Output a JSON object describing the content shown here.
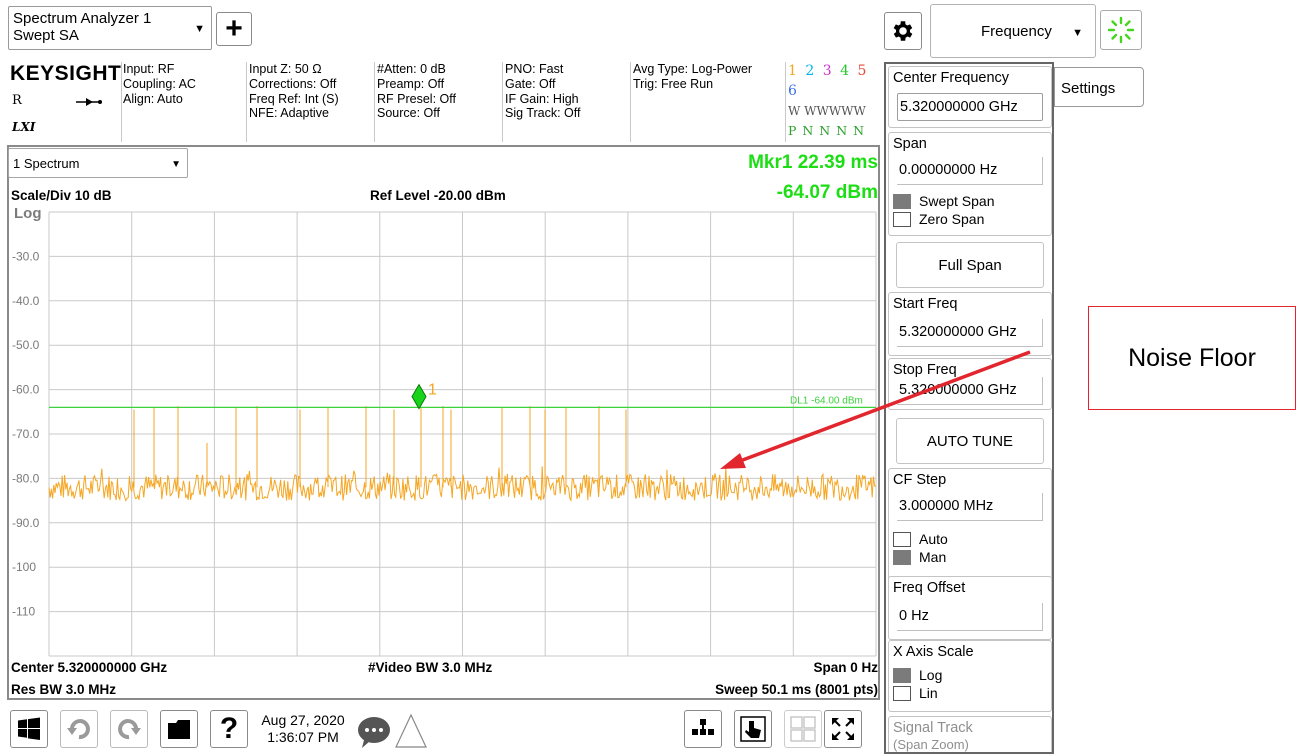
{
  "top_bar": {
    "instrument": {
      "line1": "Spectrum Analyzer 1",
      "line2": "Swept SA"
    },
    "add_button_label": "+",
    "active_menu": "Frequency"
  },
  "header": {
    "brand": "KEYSIGHT",
    "indicator_r": "R",
    "lxi": "LXI",
    "col1": [
      "Input: RF",
      "Coupling: AC",
      "Align: Auto"
    ],
    "col2": [
      "Input Z: 50 Ω",
      "Corrections: Off",
      "Freq Ref: Int (S)",
      "NFE: Adaptive"
    ],
    "col3": [
      "#Atten: 0 dB",
      "Preamp: Off",
      "RF Presel: Off",
      "Source: Off"
    ],
    "col4": [
      "PNO: Fast",
      "Gate: Off",
      "IF Gain: High",
      "Sig Track: Off"
    ],
    "col5": [
      "Avg Type: Log-Power",
      "Trig: Free Run"
    ],
    "trace_numbers": [
      "1",
      "2",
      "3",
      "4",
      "5",
      "6"
    ],
    "trace_colors": [
      "#f5a623",
      "#00b7eb",
      "#cc33cc",
      "#28c828",
      "#e64a3b",
      "#3b6fe6"
    ],
    "trace_types": "W WWWWW",
    "trace_detectors": "P N N N N N"
  },
  "window": {
    "selector": "1 Spectrum",
    "scale_div": "Scale/Div 10 dB",
    "ref_level": "Ref Level -20.00 dBm",
    "y_scale": "Log",
    "marker_line1": "Mkr1  22.39 ms",
    "marker_line2": "-64.07 dBm",
    "display_line_label": "DL1 -64.00 dBm",
    "marker_number": "1",
    "y_tick_labels": [
      "-30.0",
      "-40.0",
      "-50.0",
      "-60.0",
      "-70.0",
      "-80.0",
      "-90.0",
      "-100",
      "-110"
    ],
    "footer_center": "Center 5.320000000 GHz",
    "footer_vbw": "#Video BW 3.0 MHz",
    "footer_span": "Span 0 Hz",
    "footer_rbw": "Res BW 3.0 MHz",
    "footer_sweep": "Sweep 50.1 ms (8001 pts)"
  },
  "chart_data": {
    "type": "line",
    "ylim": [
      -120,
      -20
    ],
    "xlabel": "",
    "ylabel": "",
    "noise_floor_dbm": -82,
    "display_line_dbm": -64,
    "marker": {
      "time_ms": 22.39,
      "level_dbm": -64.07
    },
    "trace_color": "#f5a623",
    "display_line_color": "#3cd23c",
    "grid": true
  },
  "softkeys": {
    "settings_tab": "Settings",
    "center_freq_title": "Center Frequency",
    "center_freq_value": "5.320000000 GHz",
    "span_title": "Span",
    "span_value": "0.00000000 Hz",
    "swept_span": "Swept Span",
    "zero_span": "Zero Span",
    "full_span": "Full Span",
    "start_freq_title": "Start Freq",
    "start_freq_value": "5.320000000 GHz",
    "stop_freq_title": "Stop Freq",
    "stop_freq_value": "5.320000000 GHz",
    "auto_tune": "AUTO TUNE",
    "cf_step_title": "CF Step",
    "cf_step_value": "3.000000 MHz",
    "cf_auto": "Auto",
    "cf_man": "Man",
    "freq_offset_title": "Freq Offset",
    "freq_offset_value": "0 Hz",
    "x_axis_scale_title": "X Axis Scale",
    "x_log": "Log",
    "x_lin": "Lin",
    "signal_track_title": "Signal Track",
    "signal_track_sub": "(Span Zoom)"
  },
  "annotation": {
    "text": "Noise Floor",
    "color": "#e2262e"
  },
  "bottom_bar": {
    "date": "Aug 27, 2020",
    "time": "1:36:07 PM"
  }
}
